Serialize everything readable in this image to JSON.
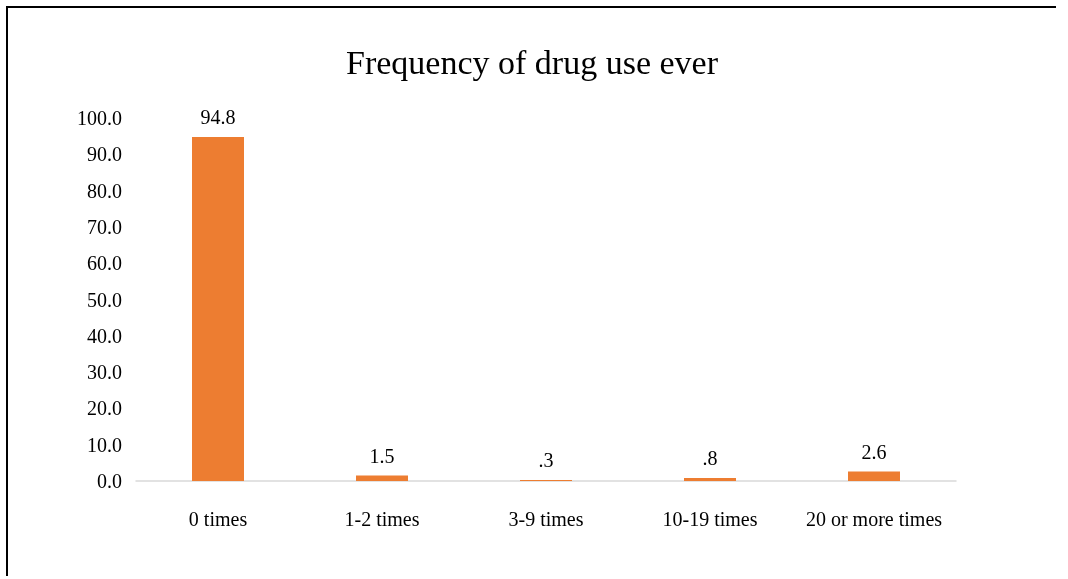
{
  "chart_data": {
    "type": "bar",
    "title": "Frequency of drug use ever",
    "categories": [
      "0 times",
      "1-2 times",
      "3-9 times",
      "10-19 times",
      "20 or more times"
    ],
    "values": [
      94.8,
      1.5,
      0.3,
      0.8,
      2.6
    ],
    "value_labels": [
      "94.8",
      "1.5",
      ".3",
      ".8",
      "2.6"
    ],
    "color": "#ed7d31",
    "ylim": [
      0,
      100
    ],
    "yticks": [
      {
        "value": 0,
        "label": "0.0"
      },
      {
        "value": 10,
        "label": "10.0"
      },
      {
        "value": 20,
        "label": "20.0"
      },
      {
        "value": 30,
        "label": "30.0"
      },
      {
        "value": 40,
        "label": "40.0"
      },
      {
        "value": 50,
        "label": "50.0"
      },
      {
        "value": 60,
        "label": "60.0"
      },
      {
        "value": 70,
        "label": "70.0"
      },
      {
        "value": 80,
        "label": "80.0"
      },
      {
        "value": 90,
        "label": "90.0"
      },
      {
        "value": 100,
        "label": "100.0"
      }
    ],
    "grid": false
  }
}
